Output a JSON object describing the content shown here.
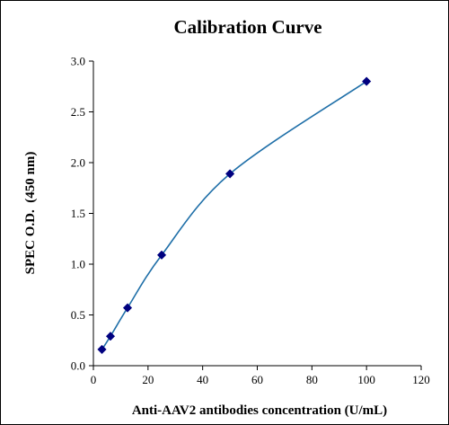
{
  "chart_data": {
    "type": "scatter",
    "title": "Calibration Curve",
    "xlabel": "Anti-AAV2 antibodies concentration (U/mL)",
    "ylabel": "SPEC O.D.  (450 nm)",
    "xlim": [
      0,
      120
    ],
    "ylim": [
      0.0,
      3.0
    ],
    "xticks": [
      "0",
      "20",
      "40",
      "60",
      "80",
      "100",
      "120"
    ],
    "yticks": [
      "0.0",
      "0.5",
      "1.0",
      "1.5",
      "2.0",
      "2.5",
      "3.0"
    ],
    "grid": false,
    "legend": "none",
    "smooth_line": true,
    "series": [
      {
        "x": [
          3.125,
          6.25,
          12.5,
          25,
          50,
          100
        ],
        "y": [
          0.16,
          0.29,
          0.57,
          1.09,
          1.89,
          2.8
        ]
      }
    ],
    "colors": {
      "marker": "#00007f",
      "line": "#1f6fa8",
      "axis": "#000000",
      "text": "#000000"
    }
  }
}
